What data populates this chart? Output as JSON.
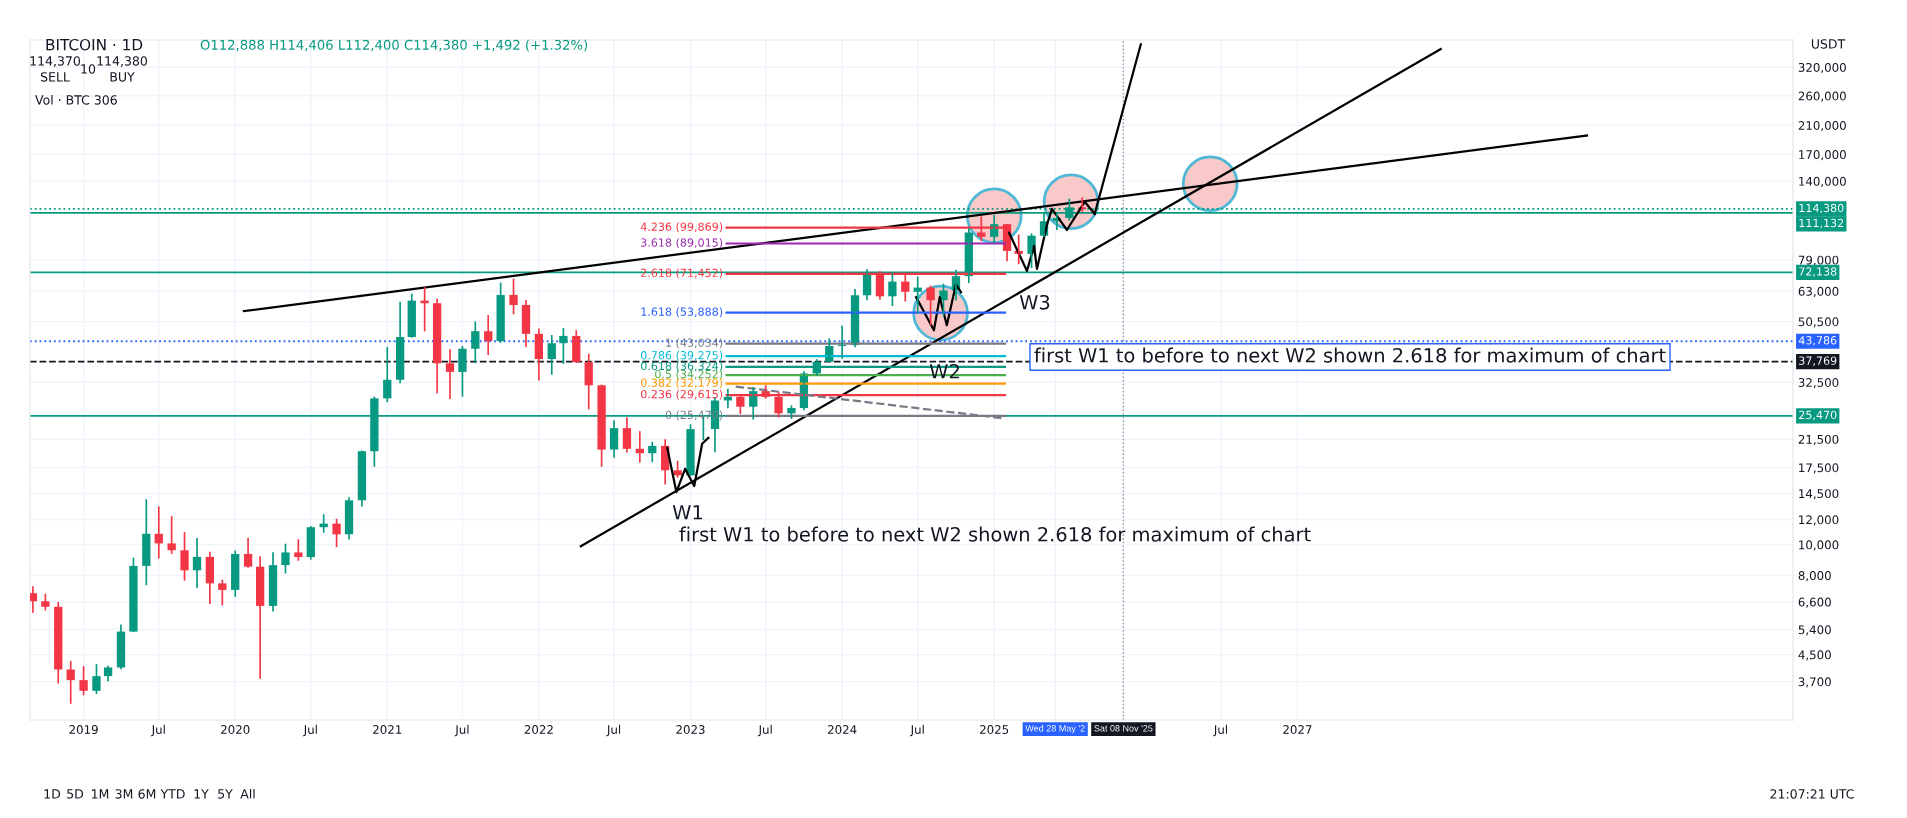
{
  "chart_data": {
    "type": "candlestick",
    "title": "BITCOIN · 1D",
    "subtitle": "O112,888 H114,406 L112,400 C114,380 +1,492 (+1.32%)",
    "x": [
      "2018-09",
      "2018-10",
      "2018-11",
      "2018-12",
      "2019-01",
      "2019-02",
      "2019-03",
      "2019-04",
      "2019-05",
      "2019-06",
      "2019-07",
      "2019-08",
      "2019-09",
      "2019-10",
      "2019-11",
      "2019-12",
      "2020-01",
      "2020-02",
      "2020-03",
      "2020-04",
      "2020-05",
      "2020-06",
      "2020-07",
      "2020-08",
      "2020-09",
      "2020-10",
      "2020-11",
      "2020-12",
      "2021-01",
      "2021-02",
      "2021-03",
      "2021-04",
      "2021-05",
      "2021-06",
      "2021-07",
      "2021-08",
      "2021-09",
      "2021-10",
      "2021-11",
      "2021-12",
      "2022-01",
      "2022-02",
      "2022-03",
      "2022-04",
      "2022-05",
      "2022-06",
      "2022-07",
      "2022-08",
      "2022-09",
      "2022-10",
      "2022-11",
      "2022-12",
      "2023-01",
      "2023-02",
      "2023-03",
      "2023-04",
      "2023-05",
      "2023-06",
      "2023-07",
      "2023-08",
      "2023-09",
      "2023-10",
      "2023-11",
      "2023-12",
      "2024-01",
      "2024-02",
      "2024-03",
      "2024-04",
      "2024-05",
      "2024-06",
      "2024-07",
      "2024-08",
      "2024-09",
      "2024-10",
      "2024-11",
      "2024-12",
      "2025-01",
      "2025-02",
      "2025-03",
      "2025-04",
      "2025-05",
      "2025-06",
      "2025-07",
      "2025-08"
    ],
    "ohlc": [
      [
        7030,
        7400,
        6100,
        6630
      ],
      [
        6630,
        7000,
        6200,
        6370
      ],
      [
        6370,
        6600,
        3650,
        4040
      ],
      [
        4040,
        4300,
        3150,
        3740
      ],
      [
        3740,
        4140,
        3350,
        3460
      ],
      [
        3460,
        4200,
        3380,
        3850
      ],
      [
        3850,
        4150,
        3700,
        4100
      ],
      [
        4100,
        5600,
        4050,
        5320
      ],
      [
        5320,
        9100,
        5300,
        8570
      ],
      [
        8570,
        13900,
        7450,
        10820
      ],
      [
        10820,
        13200,
        9050,
        10090
      ],
      [
        10090,
        12300,
        9350,
        9600
      ],
      [
        9600,
        10950,
        7700,
        8300
      ],
      [
        8300,
        10500,
        7300,
        9150
      ],
      [
        9150,
        9500,
        6500,
        7550
      ],
      [
        7550,
        7750,
        6430,
        7200
      ],
      [
        7200,
        9580,
        6850,
        9350
      ],
      [
        9350,
        10500,
        8450,
        8520
      ],
      [
        8520,
        9200,
        3780,
        6410
      ],
      [
        6410,
        9470,
        6150,
        8620
      ],
      [
        8620,
        10070,
        8110,
        9450
      ],
      [
        9450,
        10400,
        8900,
        9140
      ],
      [
        9140,
        11450,
        8970,
        11350
      ],
      [
        11350,
        12470,
        10900,
        11650
      ],
      [
        11650,
        12070,
        9820,
        10780
      ],
      [
        10780,
        14100,
        10380,
        13800
      ],
      [
        13800,
        19800,
        13200,
        19700
      ],
      [
        19700,
        29300,
        17600,
        28920
      ],
      [
        28920,
        41950,
        28130,
        33100
      ],
      [
        33100,
        58350,
        32300,
        45140
      ],
      [
        45140,
        61800,
        44950,
        58800
      ],
      [
        58800,
        64850,
        47000,
        57700
      ],
      [
        57700,
        59600,
        30000,
        37300
      ],
      [
        37300,
        41330,
        28800,
        35050
      ],
      [
        35050,
        42300,
        29280,
        41460
      ],
      [
        41460,
        50500,
        37330,
        47100
      ],
      [
        47100,
        52950,
        39600,
        43820
      ],
      [
        43820,
        67000,
        43300,
        61300
      ],
      [
        61300,
        69000,
        53250,
        56950
      ],
      [
        56950,
        59100,
        42000,
        46200
      ],
      [
        46200,
        47990,
        32900,
        38470
      ],
      [
        38470,
        45800,
        34320,
        43160
      ],
      [
        43160,
        48190,
        37150,
        45510
      ],
      [
        45510,
        47450,
        37500,
        37630
      ],
      [
        37630,
        40000,
        26700,
        31800
      ],
      [
        31800,
        31950,
        17600,
        19940
      ],
      [
        19940,
        24670,
        18780,
        23300
      ],
      [
        23300,
        25200,
        19520,
        20050
      ],
      [
        20050,
        22800,
        18150,
        19420
      ],
      [
        19420,
        21100,
        18190,
        20490
      ],
      [
        20490,
        21480,
        15480,
        17160
      ],
      [
        17160,
        18390,
        16260,
        16540
      ],
      [
        16540,
        23960,
        16500,
        23130
      ],
      [
        23130,
        25250,
        21350,
        23150
      ],
      [
        23150,
        29190,
        19550,
        28480
      ],
      [
        28480,
        31000,
        26940,
        29250
      ],
      [
        29250,
        29820,
        25810,
        27220
      ],
      [
        27220,
        31400,
        24800,
        30480
      ],
      [
        30480,
        31800,
        28860,
        29230
      ],
      [
        29230,
        30250,
        25170,
        25940
      ],
      [
        25940,
        27490,
        24900,
        26970
      ],
      [
        26970,
        35200,
        26540,
        34650
      ],
      [
        34650,
        38450,
        34100,
        37720
      ],
      [
        37720,
        44700,
        37600,
        42280
      ],
      [
        42280,
        48970,
        38550,
        42580
      ],
      [
        42580,
        64000,
        41880,
        61130
      ],
      [
        61130,
        73800,
        59000,
        71290
      ],
      [
        71290,
        72800,
        59200,
        60670
      ],
      [
        60670,
        72000,
        56550,
        67520
      ],
      [
        67520,
        72000,
        58400,
        62680
      ],
      [
        62680,
        70000,
        53500,
        64630
      ],
      [
        64630,
        65600,
        49100,
        58970
      ],
      [
        58970,
        66500,
        52550,
        63330
      ],
      [
        63330,
        73600,
        58900,
        70220
      ],
      [
        70220,
        99600,
        66800,
        96410
      ],
      [
        96410,
        108350,
        90500,
        93430
      ],
      [
        93430,
        109600,
        89200,
        102430
      ],
      [
        102430,
        102500,
        78250,
        84350
      ],
      [
        84350,
        95000,
        76600,
        82550
      ],
      [
        82550,
        95750,
        74500,
        94200
      ],
      [
        94200,
        111900,
        93400,
        104600
      ],
      [
        104600,
        110500,
        98200,
        107150
      ],
      [
        107150,
        123200,
        105100,
        115750
      ],
      [
        115750,
        124450,
        112000,
        114380
      ]
    ],
    "series": [
      {
        "type": "line",
        "color": "#000000",
        "x": [
          "2020-01-22",
          "2028-11-28"
        ],
        "values": [
          54500,
          195000
        ]
      },
      {
        "type": "line",
        "color": "#000000",
        "x": [
          "2022-04-12",
          "2027-12-12"
        ],
        "values": [
          9890,
          365000
        ]
      },
      {
        "type": "line",
        "color": "#000000",
        "x": [
          "2025-08-31",
          "2025-12-20"
        ],
        "values": [
          110400,
          378000
        ]
      },
      {
        "type": "line",
        "color": "#000000",
        "x": [
          "2022-11-06",
          "2022-11-28",
          "2022-12-19",
          "2023-01-10",
          "2023-01-29",
          "2023-02-13"
        ],
        "values": [
          20200,
          14650,
          17340,
          15310,
          20800,
          21700
        ]
      },
      {
        "type": "line",
        "color": "#000000",
        "x": [
          "2024-06-27",
          "2024-08-09",
          "2024-08-23",
          "2024-09-09",
          "2024-10-01",
          "2024-10-13"
        ],
        "values": [
          60300,
          47400,
          60300,
          49200,
          66200,
          62500
        ]
      },
      {
        "type": "line",
        "color": "#000000",
        "x": [
          "2025-02-06",
          "2025-03-21",
          "2025-04-07",
          "2025-04-14",
          "2025-05-08",
          "2025-05-20",
          "2025-06-25",
          "2025-08-07",
          "2025-08-31"
        ],
        "values": [
          96200,
          72900,
          87500,
          74000,
          101900,
          114500,
          98200,
          120500,
          110400
        ]
      },
      {
        "type": "line",
        "name": "4.236 (99,869)",
        "color": "#f23645",
        "x": [
          "2023-03-29",
          "2025-01-27"
        ],
        "values": [
          99869,
          99869
        ]
      },
      {
        "type": "line",
        "name": "3.618 (89,015)",
        "color": "#9c27b0",
        "x": [
          "2023-03-29",
          "2025-01-27"
        ],
        "values": [
          89015,
          89015
        ]
      },
      {
        "type": "line",
        "name": "2.618 (71,452)",
        "color": "#f23645",
        "x": [
          "2023-03-29",
          "2025-01-27"
        ],
        "values": [
          71452,
          71452
        ]
      },
      {
        "type": "line",
        "name": "1.618 (53,888)",
        "color": "#2962ff",
        "x": [
          "2023-03-29",
          "2025-01-27"
        ],
        "values": [
          53888,
          53888
        ]
      },
      {
        "type": "line",
        "name": "1 (43,034)",
        "color": "#787b86",
        "x": [
          "2023-03-29",
          "2025-01-27"
        ],
        "values": [
          43034,
          43034
        ]
      },
      {
        "type": "line",
        "name": "0.786 (39,275)",
        "color": "#00bcd4",
        "x": [
          "2023-03-29",
          "2025-01-27"
        ],
        "values": [
          39275,
          39275
        ]
      },
      {
        "type": "line",
        "name": "0.618 (36,324)",
        "color": "#089981",
        "x": [
          "2023-03-29",
          "2025-01-27"
        ],
        "values": [
          36324,
          36324
        ]
      },
      {
        "type": "line",
        "name": "0.5 (34,252)",
        "color": "#4caf50",
        "x": [
          "2023-03-29",
          "2025-01-27"
        ],
        "values": [
          34252,
          34252
        ]
      },
      {
        "type": "line",
        "name": "0.382 (32,179)",
        "color": "#ff9800",
        "x": [
          "2023-03-29",
          "2025-01-27"
        ],
        "values": [
          32179,
          32179
        ]
      },
      {
        "type": "line",
        "name": "0.236 (29,615)",
        "color": "#f23645",
        "x": [
          "2023-03-29",
          "2025-01-27"
        ],
        "values": [
          29615,
          29615
        ]
      },
      {
        "type": "line",
        "name": "0 (25,470)",
        "color": "#787b86",
        "x": [
          "2023-03-29",
          "2025-01-27"
        ],
        "values": [
          25470,
          25470
        ]
      },
      {
        "type": "line",
        "color": "#787b86",
        "line_style": "dashed",
        "x": [
          "2023-04-20",
          "2025-01-25"
        ],
        "values": [
          31500,
          25000
        ]
      },
      {
        "type": "scatter",
        "marker": "circle",
        "color": "#f9c9c9",
        "x": [
          "2024-08-25",
          "2025-01-01",
          "2025-07-05",
          "2026-06-05"
        ],
        "values": [
          53700,
          108900,
          120500,
          137400
        ]
      }
    ],
    "log": true,
    "grid": true,
    "xlim": [
      "2018-08-25",
      "2030-04-08"
    ],
    "xticks": [
      {
        "value": "2019-01-01",
        "label": "2019"
      },
      {
        "value": "2019-07-01",
        "label": "Jul"
      },
      {
        "value": "2020-01-01",
        "label": "2020"
      },
      {
        "value": "2020-07-01",
        "label": "Jul"
      },
      {
        "value": "2021-01-01",
        "label": "2021"
      },
      {
        "value": "2021-07-01",
        "label": "Jul"
      },
      {
        "value": "2022-01-01",
        "label": "2022"
      },
      {
        "value": "2022-07-01",
        "label": "Jul"
      },
      {
        "value": "2023-01-01",
        "label": "2023"
      },
      {
        "value": "2023-07-01",
        "label": "Jul"
      },
      {
        "value": "2024-01-01",
        "label": "2024"
      },
      {
        "value": "2024-07-01",
        "label": "Jul"
      },
      {
        "value": "2025-01-01",
        "label": "2025"
      },
      {
        "value": "2025-05-28",
        "label": "Wed 28 May '2"
      },
      {
        "value": "2025-11-08",
        "label": "Sat 08 Nov '25"
      },
      {
        "value": "2026-07-01",
        "label": "Jul"
      },
      {
        "value": "2027-01-01",
        "label": "2027"
      }
    ],
    "ylim": [
      2800,
      390000
    ],
    "yticks": [
      {
        "value": 3700,
        "label": "3,700"
      },
      {
        "value": 4500,
        "label": "4,500"
      },
      {
        "value": 5400,
        "label": "5,400"
      },
      {
        "value": 6600,
        "label": "6,600"
      },
      {
        "value": 8000,
        "label": "8,000"
      },
      {
        "value": 10000,
        "label": "10,000"
      },
      {
        "value": 12000,
        "label": "12,000"
      },
      {
        "value": 14500,
        "label": "14,500"
      },
      {
        "value": 17500,
        "label": "17,500"
      },
      {
        "value": 21500,
        "label": "21,500"
      },
      {
        "value": 32500,
        "label": "32,500"
      },
      {
        "value": 50500,
        "label": "50,500"
      },
      {
        "value": 63000,
        "label": "63,000"
      },
      {
        "value": 79000,
        "label": "79,000"
      },
      {
        "value": 140000,
        "label": "140,000"
      },
      {
        "value": 170000,
        "label": "170,000"
      },
      {
        "value": 210000,
        "label": "210,000"
      },
      {
        "value": 260000,
        "label": "260,000"
      },
      {
        "value": 320000,
        "label": "320,000"
      }
    ],
    "ref_lines": [
      {
        "axis": "y",
        "value": 114380,
        "label": "114,380",
        "color": "#089981",
        "line_style": "dotted"
      },
      {
        "axis": "y",
        "value": 111132,
        "label": "111,132",
        "color": "#089981",
        "line_style": "solid"
      },
      {
        "axis": "y",
        "value": 72138,
        "label": "72,138",
        "color": "#089981",
        "line_style": "solid"
      },
      {
        "axis": "y",
        "value": 43786,
        "label": "43,786",
        "color": "#2962ff",
        "line_style": "dotted"
      },
      {
        "axis": "y",
        "value": 37769,
        "label": "37,769",
        "color": "#131722",
        "line_style": "dashed"
      },
      {
        "axis": "y",
        "value": 25470,
        "label": "25,470",
        "color": "#089981",
        "line_style": "solid"
      },
      {
        "axis": "x",
        "value": "2025-11-08",
        "color": "#9598a1",
        "line_style": "dotted"
      }
    ],
    "annotations": [
      "W1",
      "W2",
      "W3",
      "first W1 to before to next W2 shown 2.618 for maximum of chart",
      "first W1 to before to next W2 shown 2.618 for maximum of chart",
      "114,370",
      "SELL",
      "10",
      "114,380",
      "BUY",
      "Vol · BTC 306",
      "USDT",
      "21:07:21 UTC",
      "1D",
      "5D",
      "1M",
      "3M",
      "6M",
      "YTD",
      "1Y",
      "5Y",
      "All"
    ]
  }
}
